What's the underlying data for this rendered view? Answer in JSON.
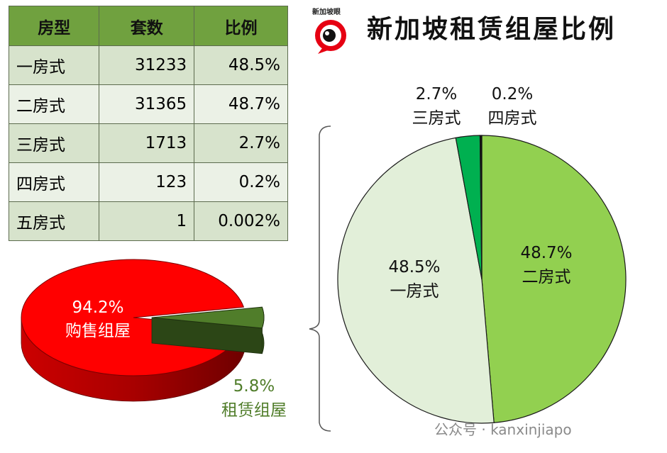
{
  "title": "新加坡租赁组屋比例",
  "logo_text": "新加坡眼",
  "table": {
    "headers": [
      "房型",
      "套数",
      "比例"
    ],
    "rows": [
      [
        "一房式",
        "31233",
        "48.5%"
      ],
      [
        "二房式",
        "31365",
        "48.7%"
      ],
      [
        "三房式",
        "1713",
        "2.7%"
      ],
      [
        "四房式",
        "123",
        "0.2%"
      ],
      [
        "五房式",
        "1",
        "0.002%"
      ]
    ]
  },
  "watermark": "公众号 · kanxinjiapo",
  "colors": {
    "sale": "#ff0000",
    "rent": "#507d2a",
    "one_room": "#e2efd9",
    "two_room": "#92d050",
    "three_room": "#00b050",
    "four_room": "#0a0a0a",
    "header": "#70a13f"
  },
  "chart_data": [
    {
      "type": "pie",
      "style": "3d-exploded",
      "slices": [
        {
          "label": "购售组屋",
          "value": 94.2,
          "value_label": "94.2%",
          "color": "#ff0000"
        },
        {
          "label": "租赁组屋",
          "value": 5.8,
          "value_label": "5.8%",
          "color": "#507d2a"
        }
      ]
    },
    {
      "type": "pie",
      "slices": [
        {
          "label": "二房式",
          "value": 48.7,
          "value_label": "48.7%",
          "color": "#92d050"
        },
        {
          "label": "一房式",
          "value": 48.5,
          "value_label": "48.5%",
          "color": "#e2efd9"
        },
        {
          "label": "三房式",
          "value": 2.7,
          "value_label": "2.7%",
          "color": "#00b050"
        },
        {
          "label": "四房式",
          "value": 0.2,
          "value_label": "0.2%",
          "color": "#0a0a0a"
        }
      ]
    }
  ]
}
